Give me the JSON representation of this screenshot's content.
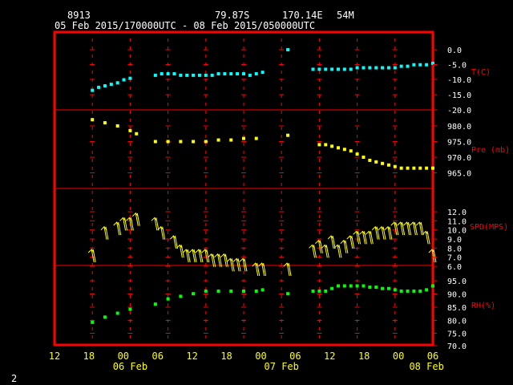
{
  "header": {
    "station": "8913",
    "lat": "79.87S",
    "lon": "170.14E",
    "elev": "54M",
    "period": "05 Feb 2015/170000UTC - 08 Feb 2015/050000UTC"
  },
  "page_number": "2",
  "colors": {
    "frame": "#ff0000",
    "grid": "#ff0000",
    "axis_text": "#ff0000",
    "header_text": "#ffffff",
    "x_text": "#ffff00",
    "temp": "#00ffff",
    "pres": "#ffff00",
    "wind": "#ffff00",
    "rh": "#00ff00"
  },
  "x_axis": {
    "hour_labels": [
      "12",
      "18",
      "00",
      "06",
      "12",
      "18",
      "00",
      "06",
      "12",
      "18",
      "00",
      "06"
    ],
    "day_labels": [
      "06 Feb",
      "07 Feb",
      "08 Feb"
    ]
  },
  "chart_data": {
    "type": "scatter",
    "x_unit": "hours from 05 Feb 12UTC",
    "x_range": [
      0,
      60
    ],
    "panels": [
      {
        "name": "temp",
        "label": "T(C)",
        "ticks": [
          "0.0",
          "-5.0",
          "-10.0",
          "-15.0",
          "-20.0"
        ],
        "ylim": [
          -20,
          0
        ],
        "x": [
          6,
          7,
          8,
          9,
          10,
          11,
          12,
          16,
          17,
          18,
          19,
          20,
          21,
          22,
          23,
          24,
          25,
          26,
          27,
          28,
          29,
          30,
          31,
          32,
          33,
          37,
          41,
          42,
          43,
          44,
          45,
          46,
          47,
          48,
          49,
          50,
          51,
          52,
          53,
          54,
          55,
          56,
          57,
          58,
          59,
          60
        ],
        "values": [
          -13.5,
          -12.5,
          -12,
          -11.5,
          -11,
          -10,
          -9.5,
          -8.5,
          -8,
          -8,
          -8,
          -8.5,
          -8.5,
          -8.5,
          -8.5,
          -8.5,
          -8.5,
          -8,
          -8,
          -8,
          -8,
          -8,
          -8.5,
          -8,
          -7.5,
          0,
          -6.5,
          -6.5,
          -6.5,
          -6.5,
          -6.5,
          -6.5,
          -6.5,
          -6,
          -6,
          -6,
          -6,
          -6,
          -6,
          -6,
          -5.5,
          -5.5,
          -5,
          -5,
          -5,
          -4.5
        ]
      },
      {
        "name": "pressure",
        "label": "Pre (mb)",
        "ticks": [
          "980.0",
          "975.0",
          "970.0",
          "965.0"
        ],
        "ylim": [
          963,
          983
        ],
        "x": [
          6,
          8,
          10,
          12,
          13,
          16,
          18,
          20,
          22,
          24,
          26,
          28,
          30,
          32,
          37,
          42,
          43,
          44,
          45,
          46,
          47,
          48,
          49,
          50,
          51,
          52,
          53,
          54,
          55,
          56,
          57,
          58,
          59,
          60
        ],
        "values": [
          982,
          981,
          980,
          978.5,
          977.5,
          975,
          975,
          975,
          975,
          975,
          975.5,
          975.5,
          976,
          976,
          977,
          974,
          974,
          973.5,
          973,
          972.5,
          972,
          971,
          970,
          969,
          968.5,
          968,
          967.5,
          967,
          966.5,
          966.5,
          966.5,
          966.5,
          966.5,
          966.5
        ]
      },
      {
        "name": "wind",
        "label": "SPD(MPS)",
        "ticks": [
          "12.0",
          "11.0",
          "10.0",
          "9.0",
          "8.0",
          "7.0",
          "6.0"
        ],
        "ylim": [
          6,
          12
        ],
        "x": [
          6,
          8,
          10,
          11,
          12,
          13,
          16,
          17,
          19,
          20,
          21,
          22,
          23,
          24,
          25,
          26,
          27,
          28,
          29,
          30,
          32,
          33,
          37,
          41,
          42,
          43,
          44,
          45,
          46,
          47,
          48,
          49,
          50,
          51,
          52,
          53,
          54,
          55,
          56,
          57,
          58,
          59,
          60
        ],
        "values": [
          7.5,
          10,
          10.5,
          11,
          11,
          11.5,
          11,
          10,
          9,
          8,
          7.5,
          7.5,
          7.5,
          7.5,
          7,
          7,
          7,
          6.5,
          6.5,
          6.5,
          6,
          6,
          6,
          8,
          8.5,
          8,
          9,
          8,
          8.5,
          9,
          9.5,
          9.5,
          9.5,
          10,
          10,
          10,
          10.5,
          10.5,
          10.5,
          10.5,
          10.5,
          9.5,
          7.5
        ]
      },
      {
        "name": "rh",
        "label": "RH(%)",
        "ticks": [
          "95.0",
          "90.0",
          "85.0",
          "80.0",
          "75.0",
          "70.0"
        ],
        "ylim": [
          70,
          96
        ],
        "x": [
          6,
          8,
          10,
          12,
          16,
          18,
          20,
          22,
          24,
          26,
          28,
          30,
          32,
          33,
          37,
          41,
          42,
          43,
          44,
          45,
          46,
          47,
          48,
          49,
          50,
          51,
          52,
          53,
          54,
          55,
          56,
          57,
          58,
          59,
          60
        ],
        "values": [
          79,
          81,
          82.5,
          84,
          86,
          88,
          89,
          90,
          91,
          91,
          91,
          91,
          91,
          91.5,
          90,
          91,
          91,
          91,
          92,
          93,
          93,
          93,
          93,
          93,
          92.5,
          92.5,
          92,
          92,
          91.5,
          91,
          91,
          91,
          91,
          91.5,
          93
        ]
      }
    ]
  }
}
